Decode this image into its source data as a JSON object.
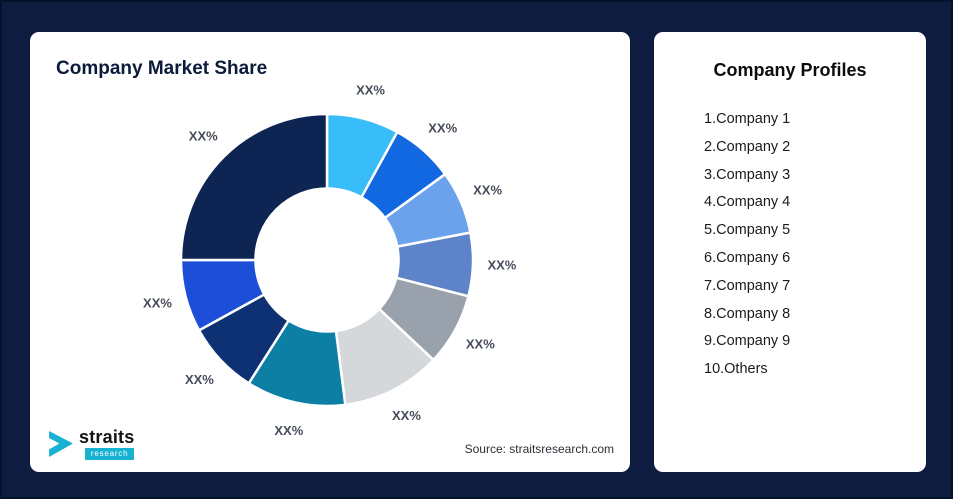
{
  "page": {
    "background": "#0d1c3f",
    "card_background": "#ffffff"
  },
  "market_share": {
    "title": "Company Market Share",
    "source": "Source: straitsresearch.com",
    "logo": {
      "name": "straits",
      "sub": "research",
      "accent": "#17b1d2"
    }
  },
  "profiles": {
    "title": "Company Profiles",
    "items": [
      "1.Company 1",
      "2.Company 2",
      "3.Company 3",
      "4.Company 4",
      "5.Company 5",
      "6.Company 6",
      "7.Company 7",
      "8.Company 8",
      "9.Company 9",
      "10.Others"
    ]
  },
  "chart_data": {
    "type": "pie",
    "subtype": "donut",
    "title": "Company Market Share",
    "start_angle_deg": 0,
    "direction": "clockwise",
    "inner_radius_ratio": 0.49,
    "segments": [
      {
        "label": "XX%",
        "value": 8,
        "color": "#38bdf8"
      },
      {
        "label": "XX%",
        "value": 7,
        "color": "#1168e0"
      },
      {
        "label": "XX%",
        "value": 7,
        "color": "#6aa2ec"
      },
      {
        "label": "XX%",
        "value": 7,
        "color": "#5d83c8"
      },
      {
        "label": "XX%",
        "value": 8,
        "color": "#99a1ad"
      },
      {
        "label": "XX%",
        "value": 11,
        "color": "#d5d8db"
      },
      {
        "label": "XX%",
        "value": 11,
        "color": "#0d7fa5"
      },
      {
        "label": "XX%",
        "value": 8,
        "color": "#0d3173"
      },
      {
        "label": "XX%",
        "value": 8,
        "color": "#1d4ed8"
      },
      {
        "label": "XX%",
        "value": 25,
        "color": "#0e2553"
      }
    ]
  }
}
